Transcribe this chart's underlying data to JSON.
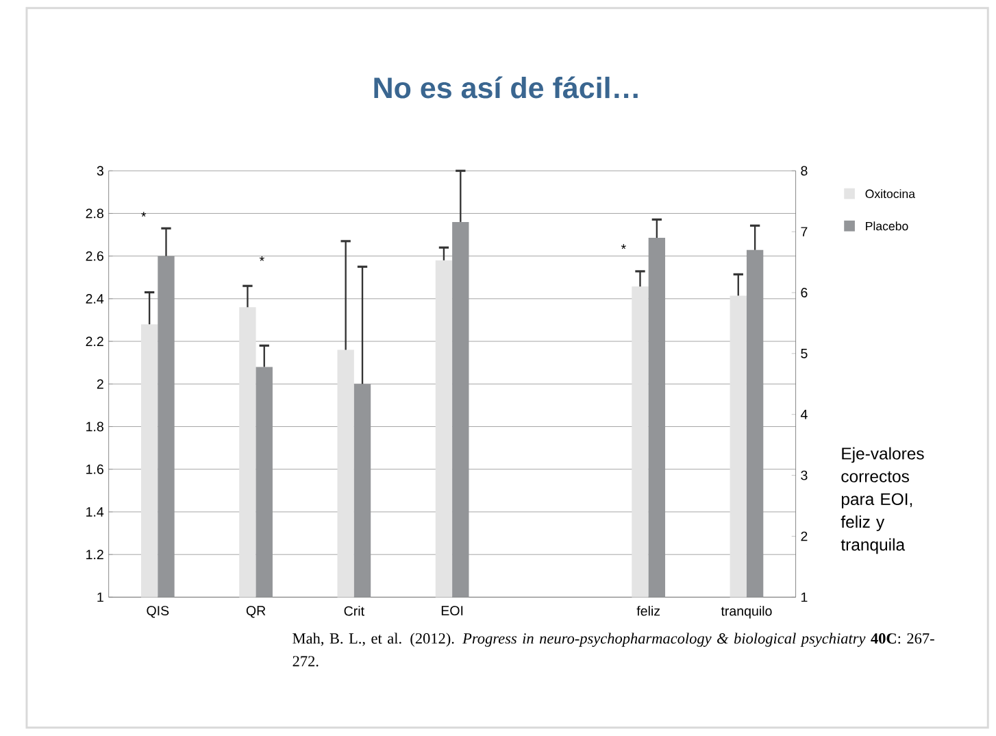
{
  "chart_data": {
    "type": "bar",
    "title": "No es así de fácil…",
    "categories": [
      "QIS",
      "QR",
      "Crit",
      "EOI",
      null,
      "feliz",
      "tranquilo"
    ],
    "series": [
      {
        "name": "Oxitocina",
        "color": "#e4e4e4",
        "values": [
          2.28,
          2.36,
          2.16,
          null,
          null,
          null,
          null
        ],
        "errors": [
          [
            2.28,
            2.43
          ],
          [
            2.36,
            2.46
          ],
          [
            2.16,
            2.67
          ],
          null,
          null,
          null,
          null
        ]
      },
      {
        "name": "Placebo",
        "color": "#939598",
        "values": [
          2.6,
          2.08,
          2.0,
          null,
          null,
          null,
          null
        ],
        "errors": [
          [
            2.6,
            2.73
          ],
          [
            2.08,
            2.18
          ],
          [
            2.0,
            2.55
          ],
          null,
          null,
          null,
          null
        ]
      },
      {
        "color": "#e4e4e4",
        "axis": "y2",
        "values": [
          null,
          null,
          null,
          6.53,
          null,
          6.1,
          5.95
        ],
        "errors": [
          null,
          null,
          null,
          [
            6.53,
            6.74
          ],
          null,
          [
            6.1,
            6.35
          ],
          [
            5.95,
            6.3
          ]
        ]
      },
      {
        "color": "#939598",
        "axis": "y2",
        "values": [
          null,
          null,
          null,
          7.16,
          null,
          6.9,
          6.7
        ],
        "errors": [
          null,
          null,
          null,
          [
            7.16,
            8.0
          ],
          null,
          [
            6.9,
            7.2
          ],
          [
            6.7,
            7.1
          ]
        ]
      }
    ],
    "ylim": [
      1,
      3
    ],
    "yticks": [
      1,
      1.2,
      1.4,
      1.6,
      1.8,
      2,
      2.2,
      2.4,
      2.6,
      2.8,
      3
    ],
    "y2lim": [
      1,
      8
    ],
    "y2ticks": [
      1,
      2,
      3,
      4,
      5,
      6,
      7,
      8
    ],
    "grid": "y",
    "legend": "right",
    "annotations": [
      "*",
      "*",
      "*",
      "Eje-valores correctos para EOI, feliz y tranquila",
      "Mah, B. L., et al. (2012). *Progress in neuro-psychopharmacology & biological psychiatry* **40C**: 267-272."
    ]
  }
}
